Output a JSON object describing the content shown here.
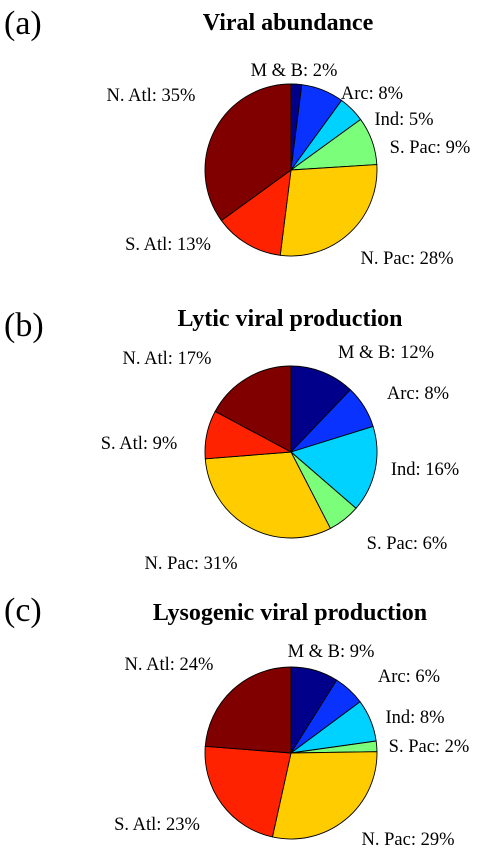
{
  "chart_data": [
    {
      "type": "pie",
      "panel_label": "(a)",
      "title": "Viral abundance",
      "slices": [
        {
          "label": "M & B: 2%",
          "value": 2,
          "color": "#00008b"
        },
        {
          "label": "Arc: 8%",
          "value": 8,
          "color": "#0a32ff"
        },
        {
          "label": "Ind: 5%",
          "value": 5,
          "color": "#00d2ff"
        },
        {
          "label": "S. Pac: 9%",
          "value": 9,
          "color": "#7bff7b"
        },
        {
          "label": "N. Pac: 28%",
          "value": 28,
          "color": "#ffcc00"
        },
        {
          "label": "S. Atl: 13%",
          "value": 13,
          "color": "#ff2200"
        },
        {
          "label": "N. Atl: 35%",
          "value": 35,
          "color": "#800000"
        }
      ]
    },
    {
      "type": "pie",
      "panel_label": "(b)",
      "title": "Lytic viral production",
      "slices": [
        {
          "label": "M & B: 12%",
          "value": 12,
          "color": "#00008b"
        },
        {
          "label": "Arc: 8%",
          "value": 8,
          "color": "#0a32ff"
        },
        {
          "label": "Ind: 16%",
          "value": 16,
          "color": "#00d2ff"
        },
        {
          "label": "S. Pac: 6%",
          "value": 6,
          "color": "#7bff7b"
        },
        {
          "label": "N. Pac: 31%",
          "value": 31,
          "color": "#ffcc00"
        },
        {
          "label": "S. Atl: 9%",
          "value": 9,
          "color": "#ff2200"
        },
        {
          "label": "N. Atl: 17%",
          "value": 17,
          "color": "#800000"
        }
      ]
    },
    {
      "type": "pie",
      "panel_label": "(c)",
      "title": "Lysogenic viral production",
      "slices": [
        {
          "label": "M & B: 9%",
          "value": 9,
          "color": "#00008b"
        },
        {
          "label": "Arc: 6%",
          "value": 6,
          "color": "#0a32ff"
        },
        {
          "label": "Ind: 8%",
          "value": 8,
          "color": "#00d2ff"
        },
        {
          "label": "S. Pac: 2%",
          "value": 2,
          "color": "#7bff7b"
        },
        {
          "label": "N. Pac: 29%",
          "value": 29,
          "color": "#ffcc00"
        },
        {
          "label": "S. Atl: 23%",
          "value": 23,
          "color": "#ff2200"
        },
        {
          "label": "N. Atl: 24%",
          "value": 24,
          "color": "#800000"
        }
      ]
    }
  ]
}
